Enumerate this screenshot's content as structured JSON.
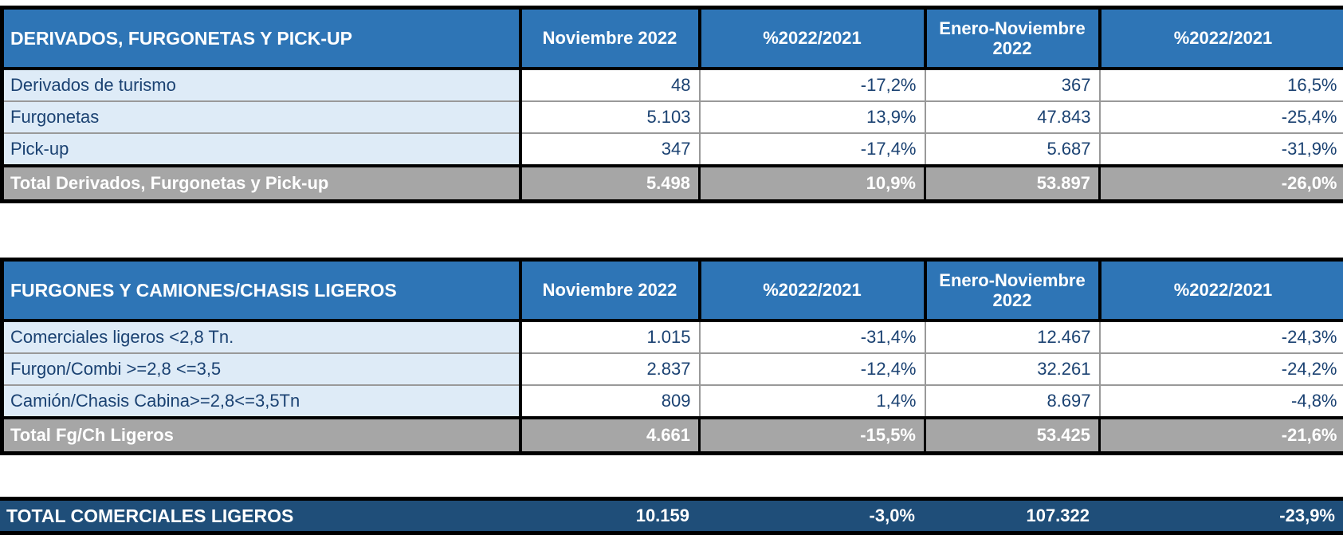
{
  "colors": {
    "header_blue": "#2E75B6",
    "label_row_blue": "#DEEBF7",
    "total_row_gray": "#A6A6A6",
    "grand_total_navy": "#1F4E79",
    "data_text_navy": "#1B4272",
    "grid_line_gray": "#999999",
    "border_black": "#000000"
  },
  "tables": [
    {
      "title": "DERIVADOS, FURGONETAS Y PICK-UP",
      "columns": [
        "Noviembre 2022",
        "%2022/2021",
        "Enero-Noviembre 2022",
        "%2022/2021"
      ],
      "rows": [
        {
          "label": "Derivados de turismo",
          "values": [
            "48",
            "-17,2%",
            "367",
            "16,5%"
          ]
        },
        {
          "label": "Furgonetas",
          "values": [
            "5.103",
            "13,9%",
            "47.843",
            "-25,4%"
          ]
        },
        {
          "label": "Pick-up",
          "values": [
            "347",
            "-17,4%",
            "5.687",
            "-31,9%"
          ]
        }
      ],
      "total": {
        "label": "Total Derivados, Furgonetas y Pick-up",
        "values": [
          "5.498",
          "10,9%",
          "53.897",
          "-26,0%"
        ]
      }
    },
    {
      "title": "FURGONES Y CAMIONES/CHASIS LIGEROS",
      "columns": [
        "Noviembre 2022",
        "%2022/2021",
        "Enero-Noviembre 2022",
        "%2022/2021"
      ],
      "rows": [
        {
          "label": "Comerciales ligeros <2,8 Tn.",
          "values": [
            "1.015",
            "-31,4%",
            "12.467",
            "-24,3%"
          ]
        },
        {
          "label": "Furgon/Combi >=2,8 <=3,5",
          "values": [
            "2.837",
            "-12,4%",
            "32.261",
            "-24,2%"
          ]
        },
        {
          "label": "Camión/Chasis Cabina>=2,8<=3,5Tn",
          "values": [
            "809",
            "1,4%",
            "8.697",
            "-4,8%"
          ]
        }
      ],
      "total": {
        "label": "Total Fg/Ch Ligeros",
        "values": [
          "4.661",
          "-15,5%",
          "53.425",
          "-21,6%"
        ]
      }
    }
  ],
  "grand_total": {
    "label": "TOTAL COMERCIALES LIGEROS",
    "values": [
      "10.159",
      "-3,0%",
      "107.322",
      "-23,9%"
    ]
  }
}
